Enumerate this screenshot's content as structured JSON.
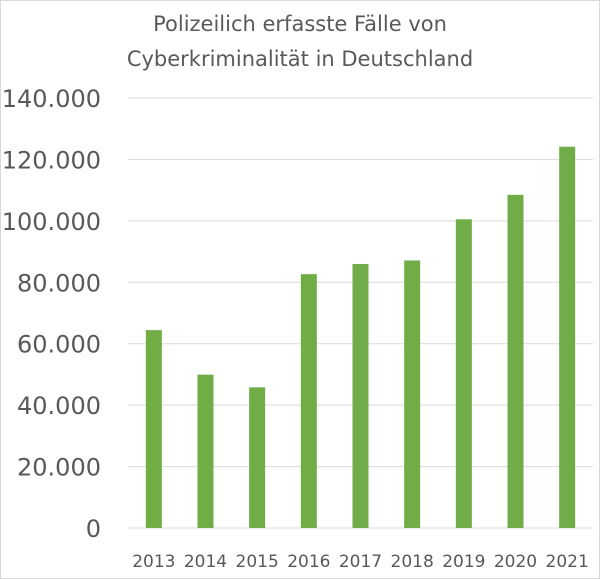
{
  "chart_data": {
    "type": "bar",
    "title": "Polizeilich erfasste Fälle von Cyberkriminalität in Deutschland",
    "title_lines": [
      "Polizeilich erfasste Fälle von",
      "Cyberkriminalität in Deutschland"
    ],
    "categories": [
      "2013",
      "2014",
      "2015",
      "2016",
      "2017",
      "2018",
      "2019",
      "2020",
      "2021"
    ],
    "values": [
      64426,
      49925,
      45793,
      82649,
      85960,
      87106,
      100514,
      108474,
      124137
    ],
    "ylim": [
      0,
      140000
    ],
    "yticks": [
      0,
      20000,
      40000,
      60000,
      80000,
      100000,
      120000,
      140000
    ],
    "ytick_labels": [
      "0",
      "20.000",
      "40.000",
      "60.000",
      "80.000",
      "100.000",
      "120.000",
      "140.000"
    ],
    "xlabel": "",
    "ylabel": "",
    "grid": true,
    "legend": "none",
    "bar_color": "#70ad47",
    "text_color": "#595959",
    "grid_color": "#d9d9d9"
  }
}
